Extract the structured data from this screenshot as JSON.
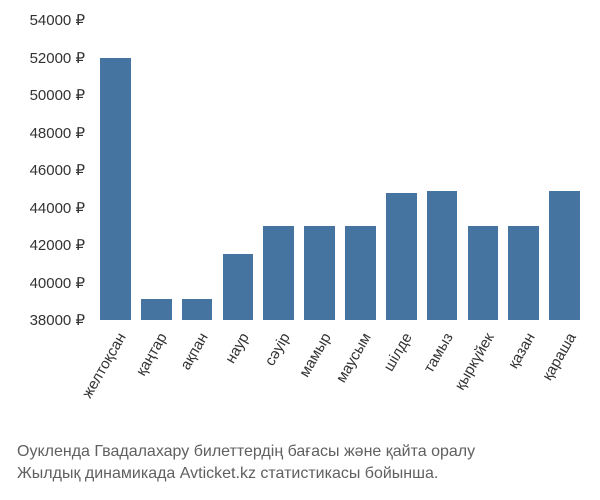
{
  "chart": {
    "type": "bar",
    "y_min": 38000,
    "y_max": 54000,
    "y_ticks": [
      38000,
      40000,
      42000,
      44000,
      46000,
      48000,
      50000,
      52000,
      54000
    ],
    "y_tick_labels": [
      "38000 ₽",
      "40000 ₽",
      "42000 ₽",
      "44000 ₽",
      "46000 ₽",
      "48000 ₽",
      "50000 ₽",
      "52000 ₽",
      "54000 ₽"
    ],
    "categories": [
      "желтоқсан",
      "қаңтар",
      "ақпан",
      "наур",
      "сәуір",
      "мамыр",
      "маусым",
      "шілде",
      "тамыз",
      "қыркүйек",
      "қазан",
      "қараша"
    ],
    "values": [
      52000,
      39100,
      39100,
      41500,
      43000,
      43000,
      43000,
      44800,
      44900,
      43000,
      43000,
      44900
    ],
    "bar_color": "#4574a0",
    "background_color": "#ffffff",
    "tick_font_size": 15,
    "tick_color": "#333333",
    "x_label_rotation": -60,
    "bar_width_ratio": 0.75
  },
  "caption": {
    "line1": "Оукленда Гвадалахару билеттердің бағасы және қайта оралу",
    "line2": "Жылдық динамикада Avticket.kz статистикасы бойынша.",
    "font_size": 16,
    "color": "#606060"
  }
}
